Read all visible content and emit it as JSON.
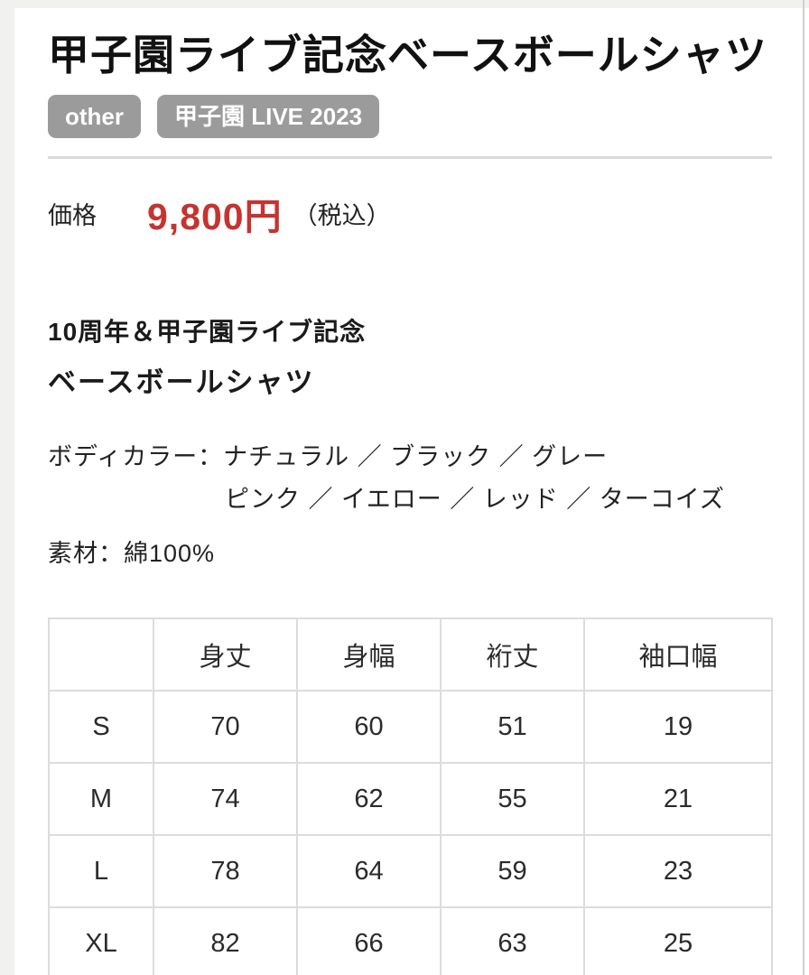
{
  "product": {
    "title": "甲子園ライブ記念ベースボールシャツ",
    "tags": [
      {
        "label": "other"
      },
      {
        "label": "甲子園 LIVE 2023"
      }
    ],
    "price": {
      "label": "価格",
      "amount": "9,800円",
      "tax_note": "（税込）"
    },
    "description": {
      "line1": "10周年＆甲子園ライブ記念",
      "line2": "ベースボールシャツ"
    },
    "body_color": {
      "line1": "ボディカラー：ナチュラル ／ ブラック ／ グレー",
      "line2": "ピンク ／ イエロー ／ レッド ／ ターコイズ"
    },
    "material": "素材：綿100%"
  },
  "size_table": {
    "columns": [
      "",
      "身丈",
      "身幅",
      "裄丈",
      "袖口幅"
    ],
    "rows": [
      {
        "size": "S",
        "values": [
          70,
          60,
          51,
          19
        ]
      },
      {
        "size": "M",
        "values": [
          74,
          62,
          55,
          21
        ]
      },
      {
        "size": "L",
        "values": [
          78,
          64,
          59,
          23
        ]
      },
      {
        "size": "XL",
        "values": [
          82,
          66,
          63,
          25
        ]
      }
    ]
  },
  "colors": {
    "price_red": "#c53430",
    "tag_background": "#9b9b9b",
    "table_border": "#dcdcdc",
    "divider": "#d9d9d9",
    "page_edge": "#f1f1ef"
  }
}
